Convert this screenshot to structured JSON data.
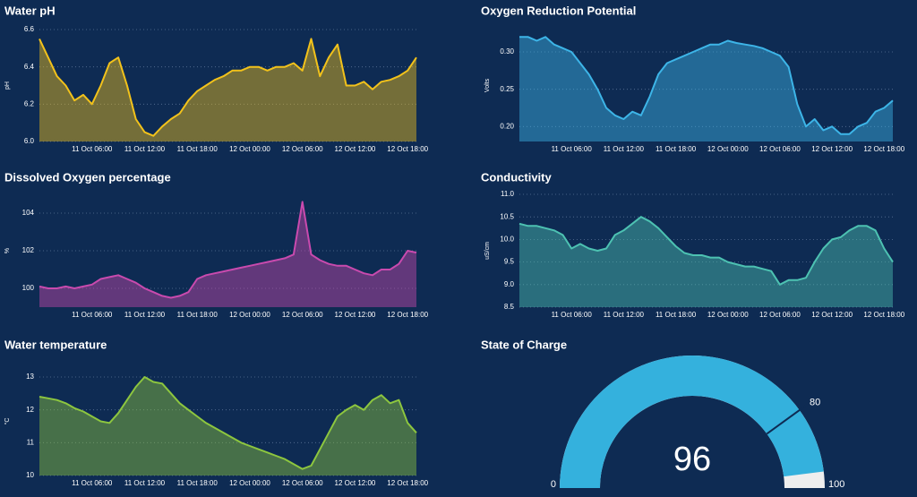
{
  "chart_data": [
    {
      "type": "line",
      "title": "Water pH",
      "ylabel": "pH",
      "color": "#f2c21b",
      "grid": true,
      "ylim": [
        6.0,
        6.6
      ],
      "yticks": [
        {
          "value": 6.0,
          "label": "6.0"
        },
        {
          "value": 6.2,
          "label": "6.2"
        },
        {
          "value": 6.4,
          "label": "6.4"
        },
        {
          "value": 6.6,
          "label": "6.6"
        }
      ],
      "xlim": [
        "11 Oct 00:00",
        "12 Oct 19:00"
      ],
      "xticks": [
        "11 Oct 06:00",
        "11 Oct 12:00",
        "11 Oct 18:00",
        "12 Oct 00:00",
        "12 Oct 06:00",
        "12 Oct 12:00",
        "12 Oct 18:00"
      ],
      "x": [
        "11 Oct 00:00",
        "11 Oct 01:00",
        "11 Oct 02:00",
        "11 Oct 03:00",
        "11 Oct 04:00",
        "11 Oct 05:00",
        "11 Oct 06:00",
        "11 Oct 07:00",
        "11 Oct 08:00",
        "11 Oct 09:00",
        "11 Oct 10:00",
        "11 Oct 11:00",
        "11 Oct 12:00",
        "11 Oct 13:00",
        "11 Oct 14:00",
        "11 Oct 15:00",
        "11 Oct 16:00",
        "11 Oct 17:00",
        "11 Oct 18:00",
        "11 Oct 19:00",
        "11 Oct 20:00",
        "11 Oct 21:00",
        "11 Oct 22:00",
        "11 Oct 23:00",
        "12 Oct 00:00",
        "12 Oct 01:00",
        "12 Oct 02:00",
        "12 Oct 03:00",
        "12 Oct 04:00",
        "12 Oct 05:00",
        "12 Oct 06:00",
        "12 Oct 07:00",
        "12 Oct 08:00",
        "12 Oct 09:00",
        "12 Oct 10:00",
        "12 Oct 11:00",
        "12 Oct 12:00",
        "12 Oct 13:00",
        "12 Oct 14:00",
        "12 Oct 15:00",
        "12 Oct 16:00",
        "12 Oct 17:00",
        "12 Oct 18:00",
        "12 Oct 19:00"
      ],
      "values": [
        6.55,
        6.45,
        6.35,
        6.3,
        6.22,
        6.25,
        6.2,
        6.3,
        6.42,
        6.45,
        6.3,
        6.12,
        6.05,
        6.03,
        6.08,
        6.12,
        6.15,
        6.22,
        6.27,
        6.3,
        6.33,
        6.35,
        6.38,
        6.38,
        6.4,
        6.4,
        6.38,
        6.4,
        6.4,
        6.42,
        6.38,
        6.55,
        6.35,
        6.45,
        6.52,
        6.3,
        6.3,
        6.32,
        6.28,
        6.32,
        6.33,
        6.35,
        6.38,
        6.45
      ]
    },
    {
      "type": "line",
      "title": "Oxygen Reduction Potential",
      "ylabel": "Volts",
      "color": "#3db5e8",
      "grid": true,
      "ylim": [
        0.18,
        0.33
      ],
      "yticks": [
        {
          "value": 0.2,
          "label": "0.20"
        },
        {
          "value": 0.25,
          "label": "0.25"
        },
        {
          "value": 0.3,
          "label": "0.30"
        }
      ],
      "xlim": [
        "11 Oct 00:00",
        "12 Oct 19:00"
      ],
      "xticks": [
        "11 Oct 06:00",
        "11 Oct 12:00",
        "11 Oct 18:00",
        "12 Oct 00:00",
        "12 Oct 06:00",
        "12 Oct 12:00",
        "12 Oct 18:00"
      ],
      "x": [
        "11 Oct 00:00",
        "11 Oct 01:00",
        "11 Oct 02:00",
        "11 Oct 03:00",
        "11 Oct 04:00",
        "11 Oct 05:00",
        "11 Oct 06:00",
        "11 Oct 07:00",
        "11 Oct 08:00",
        "11 Oct 09:00",
        "11 Oct 10:00",
        "11 Oct 11:00",
        "11 Oct 12:00",
        "11 Oct 13:00",
        "11 Oct 14:00",
        "11 Oct 15:00",
        "11 Oct 16:00",
        "11 Oct 17:00",
        "11 Oct 18:00",
        "11 Oct 19:00",
        "11 Oct 20:00",
        "11 Oct 21:00",
        "11 Oct 22:00",
        "11 Oct 23:00",
        "12 Oct 00:00",
        "12 Oct 01:00",
        "12 Oct 02:00",
        "12 Oct 03:00",
        "12 Oct 04:00",
        "12 Oct 05:00",
        "12 Oct 06:00",
        "12 Oct 07:00",
        "12 Oct 08:00",
        "12 Oct 09:00",
        "12 Oct 10:00",
        "12 Oct 11:00",
        "12 Oct 12:00",
        "12 Oct 13:00",
        "12 Oct 14:00",
        "12 Oct 15:00",
        "12 Oct 16:00",
        "12 Oct 17:00",
        "12 Oct 18:00",
        "12 Oct 19:00"
      ],
      "values": [
        0.32,
        0.32,
        0.315,
        0.32,
        0.31,
        0.305,
        0.3,
        0.285,
        0.27,
        0.25,
        0.225,
        0.215,
        0.21,
        0.22,
        0.215,
        0.24,
        0.27,
        0.285,
        0.29,
        0.295,
        0.3,
        0.305,
        0.31,
        0.31,
        0.315,
        0.312,
        0.31,
        0.308,
        0.305,
        0.3,
        0.295,
        0.28,
        0.23,
        0.2,
        0.21,
        0.195,
        0.2,
        0.19,
        0.19,
        0.2,
        0.205,
        0.22,
        0.225,
        0.235
      ]
    },
    {
      "type": "line",
      "title": "Dissolved Oxygen percentage",
      "ylabel": "%",
      "color": "#c94aae",
      "grid": true,
      "ylim": [
        99,
        105
      ],
      "yticks": [
        100,
        102,
        104
      ],
      "xlim": [
        "11 Oct 00:00",
        "12 Oct 19:00"
      ],
      "xticks": [
        "11 Oct 06:00",
        "11 Oct 12:00",
        "11 Oct 18:00",
        "12 Oct 00:00",
        "12 Oct 06:00",
        "12 Oct 12:00",
        "12 Oct 18:00"
      ],
      "x": [
        "11 Oct 00:00",
        "11 Oct 01:00",
        "11 Oct 02:00",
        "11 Oct 03:00",
        "11 Oct 04:00",
        "11 Oct 05:00",
        "11 Oct 06:00",
        "11 Oct 07:00",
        "11 Oct 08:00",
        "11 Oct 09:00",
        "11 Oct 10:00",
        "11 Oct 11:00",
        "11 Oct 12:00",
        "11 Oct 13:00",
        "11 Oct 14:00",
        "11 Oct 15:00",
        "11 Oct 16:00",
        "11 Oct 17:00",
        "11 Oct 18:00",
        "11 Oct 19:00",
        "11 Oct 20:00",
        "11 Oct 21:00",
        "11 Oct 22:00",
        "11 Oct 23:00",
        "12 Oct 00:00",
        "12 Oct 01:00",
        "12 Oct 02:00",
        "12 Oct 03:00",
        "12 Oct 04:00",
        "12 Oct 05:00",
        "12 Oct 06:00",
        "12 Oct 07:00",
        "12 Oct 08:00",
        "12 Oct 09:00",
        "12 Oct 10:00",
        "12 Oct 11:00",
        "12 Oct 12:00",
        "12 Oct 13:00",
        "12 Oct 14:00",
        "12 Oct 15:00",
        "12 Oct 16:00",
        "12 Oct 17:00",
        "12 Oct 18:00",
        "12 Oct 19:00"
      ],
      "values": [
        100.1,
        100,
        100,
        100.1,
        100,
        100.1,
        100.2,
        100.5,
        100.6,
        100.7,
        100.5,
        100.3,
        100,
        99.8,
        99.6,
        99.5,
        99.6,
        99.8,
        100.5,
        100.7,
        100.8,
        100.9,
        101,
        101.1,
        101.2,
        101.3,
        101.4,
        101.5,
        101.6,
        101.8,
        104.6,
        101.8,
        101.5,
        101.3,
        101.2,
        101.2,
        101,
        100.8,
        100.7,
        101,
        101,
        101.3,
        102,
        101.9
      ]
    },
    {
      "type": "line",
      "title": "Conductivity",
      "ylabel": "uS/cm",
      "color": "#4dc2b2",
      "grid": true,
      "ylim": [
        8.5,
        11.0
      ],
      "yticks": [
        8.5,
        {
          "value": 9.0,
          "label": "9.0"
        },
        9.5,
        {
          "value": 10.0,
          "label": "10.0"
        },
        10.5,
        {
          "value": 11.0,
          "label": "11.0"
        }
      ],
      "xlim": [
        "11 Oct 00:00",
        "12 Oct 19:00"
      ],
      "xticks": [
        "11 Oct 06:00",
        "11 Oct 12:00",
        "11 Oct 18:00",
        "12 Oct 00:00",
        "12 Oct 06:00",
        "12 Oct 12:00",
        "12 Oct 18:00"
      ],
      "x": [
        "11 Oct 00:00",
        "11 Oct 01:00",
        "11 Oct 02:00",
        "11 Oct 03:00",
        "11 Oct 04:00",
        "11 Oct 05:00",
        "11 Oct 06:00",
        "11 Oct 07:00",
        "11 Oct 08:00",
        "11 Oct 09:00",
        "11 Oct 10:00",
        "11 Oct 11:00",
        "11 Oct 12:00",
        "11 Oct 13:00",
        "11 Oct 14:00",
        "11 Oct 15:00",
        "11 Oct 16:00",
        "11 Oct 17:00",
        "11 Oct 18:00",
        "11 Oct 19:00",
        "11 Oct 20:00",
        "11 Oct 21:00",
        "11 Oct 22:00",
        "11 Oct 23:00",
        "12 Oct 00:00",
        "12 Oct 01:00",
        "12 Oct 02:00",
        "12 Oct 03:00",
        "12 Oct 04:00",
        "12 Oct 05:00",
        "12 Oct 06:00",
        "12 Oct 07:00",
        "12 Oct 08:00",
        "12 Oct 09:00",
        "12 Oct 10:00",
        "12 Oct 11:00",
        "12 Oct 12:00",
        "12 Oct 13:00",
        "12 Oct 14:00",
        "12 Oct 15:00",
        "12 Oct 16:00",
        "12 Oct 17:00",
        "12 Oct 18:00",
        "12 Oct 19:00"
      ],
      "values": [
        10.35,
        10.3,
        10.3,
        10.25,
        10.2,
        10.1,
        9.8,
        9.9,
        9.8,
        9.75,
        9.8,
        10.1,
        10.2,
        10.35,
        10.5,
        10.4,
        10.25,
        10.05,
        9.85,
        9.7,
        9.65,
        9.65,
        9.6,
        9.6,
        9.5,
        9.45,
        9.4,
        9.4,
        9.35,
        9.3,
        9.0,
        9.1,
        9.1,
        9.15,
        9.5,
        9.8,
        10.0,
        10.05,
        10.2,
        10.3,
        10.3,
        10.2,
        9.8,
        9.5
      ]
    },
    {
      "type": "line",
      "title": "Water temperature",
      "ylabel": "°C",
      "color": "#8dc63f",
      "grid": true,
      "ylim": [
        10,
        13.3
      ],
      "yticks": [
        10,
        11,
        12,
        13
      ],
      "xlim": [
        "11 Oct 00:00",
        "12 Oct 19:00"
      ],
      "xticks": [
        "11 Oct 06:00",
        "11 Oct 12:00",
        "11 Oct 18:00",
        "12 Oct 00:00",
        "12 Oct 06:00",
        "12 Oct 12:00",
        "12 Oct 18:00"
      ],
      "x": [
        "11 Oct 00:00",
        "11 Oct 01:00",
        "11 Oct 02:00",
        "11 Oct 03:00",
        "11 Oct 04:00",
        "11 Oct 05:00",
        "11 Oct 06:00",
        "11 Oct 07:00",
        "11 Oct 08:00",
        "11 Oct 09:00",
        "11 Oct 10:00",
        "11 Oct 11:00",
        "11 Oct 12:00",
        "11 Oct 13:00",
        "11 Oct 14:00",
        "11 Oct 15:00",
        "11 Oct 16:00",
        "11 Oct 17:00",
        "11 Oct 18:00",
        "11 Oct 19:00",
        "11 Oct 20:00",
        "11 Oct 21:00",
        "11 Oct 22:00",
        "11 Oct 23:00",
        "12 Oct 00:00",
        "12 Oct 01:00",
        "12 Oct 02:00",
        "12 Oct 03:00",
        "12 Oct 04:00",
        "12 Oct 05:00",
        "12 Oct 06:00",
        "12 Oct 07:00",
        "12 Oct 08:00",
        "12 Oct 09:00",
        "12 Oct 10:00",
        "12 Oct 11:00",
        "12 Oct 12:00",
        "12 Oct 13:00",
        "12 Oct 14:00",
        "12 Oct 15:00",
        "12 Oct 16:00",
        "12 Oct 17:00",
        "12 Oct 18:00",
        "12 Oct 19:00"
      ],
      "values": [
        12.4,
        12.35,
        12.3,
        12.2,
        12.05,
        11.95,
        11.8,
        11.65,
        11.6,
        11.9,
        12.3,
        12.7,
        13.0,
        12.85,
        12.8,
        12.5,
        12.2,
        12.0,
        11.8,
        11.6,
        11.45,
        11.3,
        11.15,
        11.0,
        10.9,
        10.8,
        10.7,
        10.6,
        10.5,
        10.35,
        10.2,
        10.3,
        10.8,
        11.3,
        11.8,
        12.0,
        12.15,
        12.0,
        12.3,
        12.45,
        12.2,
        12.3,
        11.6,
        11.3
      ]
    },
    {
      "type": "gauge",
      "title": "State of Charge",
      "value": 96,
      "min": 0,
      "max": 100,
      "threshold": 80,
      "color": "#34b1dd",
      "track_color": "#eeeeee",
      "threshold_color": "#0e2b53"
    }
  ]
}
